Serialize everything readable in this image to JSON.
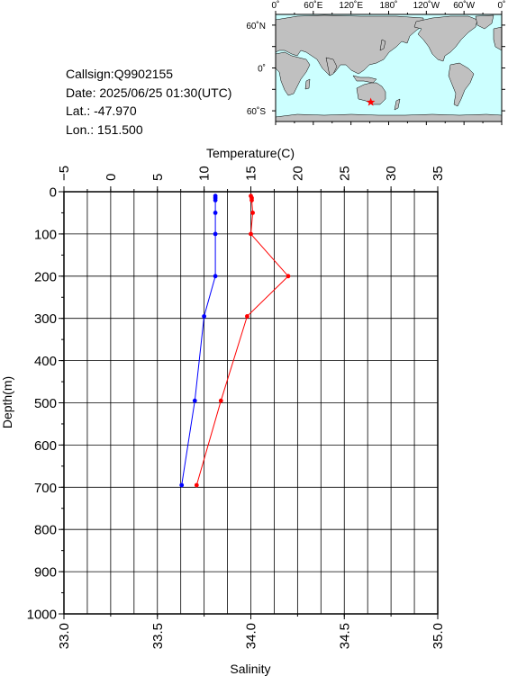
{
  "station": {
    "callsign": "Callsign:Q9902155",
    "date": "Date:  2025/06/25 01:30(UTC)",
    "lat": "Lat.:  -47.970",
    "lon": "Lon.:  151.500"
  },
  "map": {
    "top_labels": [
      "0˚",
      "60˚E",
      "120˚E",
      "180˚",
      "120˚W",
      "60˚W",
      "0˚"
    ],
    "left_labels": [
      "60˚N",
      "0˚",
      "60˚S"
    ],
    "ocean_color": "#ccffff",
    "land_color": "#c0c0c0",
    "marker": {
      "symbol": "star",
      "lat": -47.97,
      "lon": 151.5,
      "color": "#ff0000"
    }
  },
  "chart_data": {
    "type": "line",
    "title": "",
    "ylabel": "Depth(m)",
    "y_reversed": true,
    "ylim": [
      0,
      1000
    ],
    "y_ticks": [
      "0",
      "100",
      "200",
      "300",
      "400",
      "500",
      "600",
      "700",
      "800",
      "900",
      "1000"
    ],
    "top_axis": {
      "label": "Temperature(C)",
      "lim": [
        -5,
        35
      ],
      "ticks": [
        "−5",
        "0",
        "5",
        "10",
        "15",
        "20",
        "25",
        "30",
        "35"
      ]
    },
    "bottom_axis": {
      "label": "Salinity",
      "lim": [
        33.0,
        35.0
      ],
      "ticks": [
        "33.0",
        "33.5",
        "34.0",
        "34.5",
        "35.0"
      ]
    },
    "grid": true,
    "series": [
      {
        "axis": "top",
        "color": "#ff0000",
        "points": [
          {
            "x": 15.0,
            "y": 10
          },
          {
            "x": 15.1,
            "y": 15
          },
          {
            "x": 15.1,
            "y": 20
          },
          {
            "x": 15.2,
            "y": 50
          },
          {
            "x": 15.0,
            "y": 100
          },
          {
            "x": 19.0,
            "y": 200
          },
          {
            "x": 14.6,
            "y": 295
          },
          {
            "x": 11.8,
            "y": 495
          },
          {
            "x": 9.2,
            "y": 695
          }
        ]
      },
      {
        "axis": "bottom",
        "color": "#0000ff",
        "points": [
          {
            "x": 33.81,
            "y": 10
          },
          {
            "x": 33.81,
            "y": 15
          },
          {
            "x": 33.81,
            "y": 20
          },
          {
            "x": 33.81,
            "y": 50
          },
          {
            "x": 33.81,
            "y": 100
          },
          {
            "x": 33.81,
            "y": 200
          },
          {
            "x": 33.75,
            "y": 295
          },
          {
            "x": 33.7,
            "y": 495
          },
          {
            "x": 33.63,
            "y": 695
          }
        ]
      }
    ]
  }
}
